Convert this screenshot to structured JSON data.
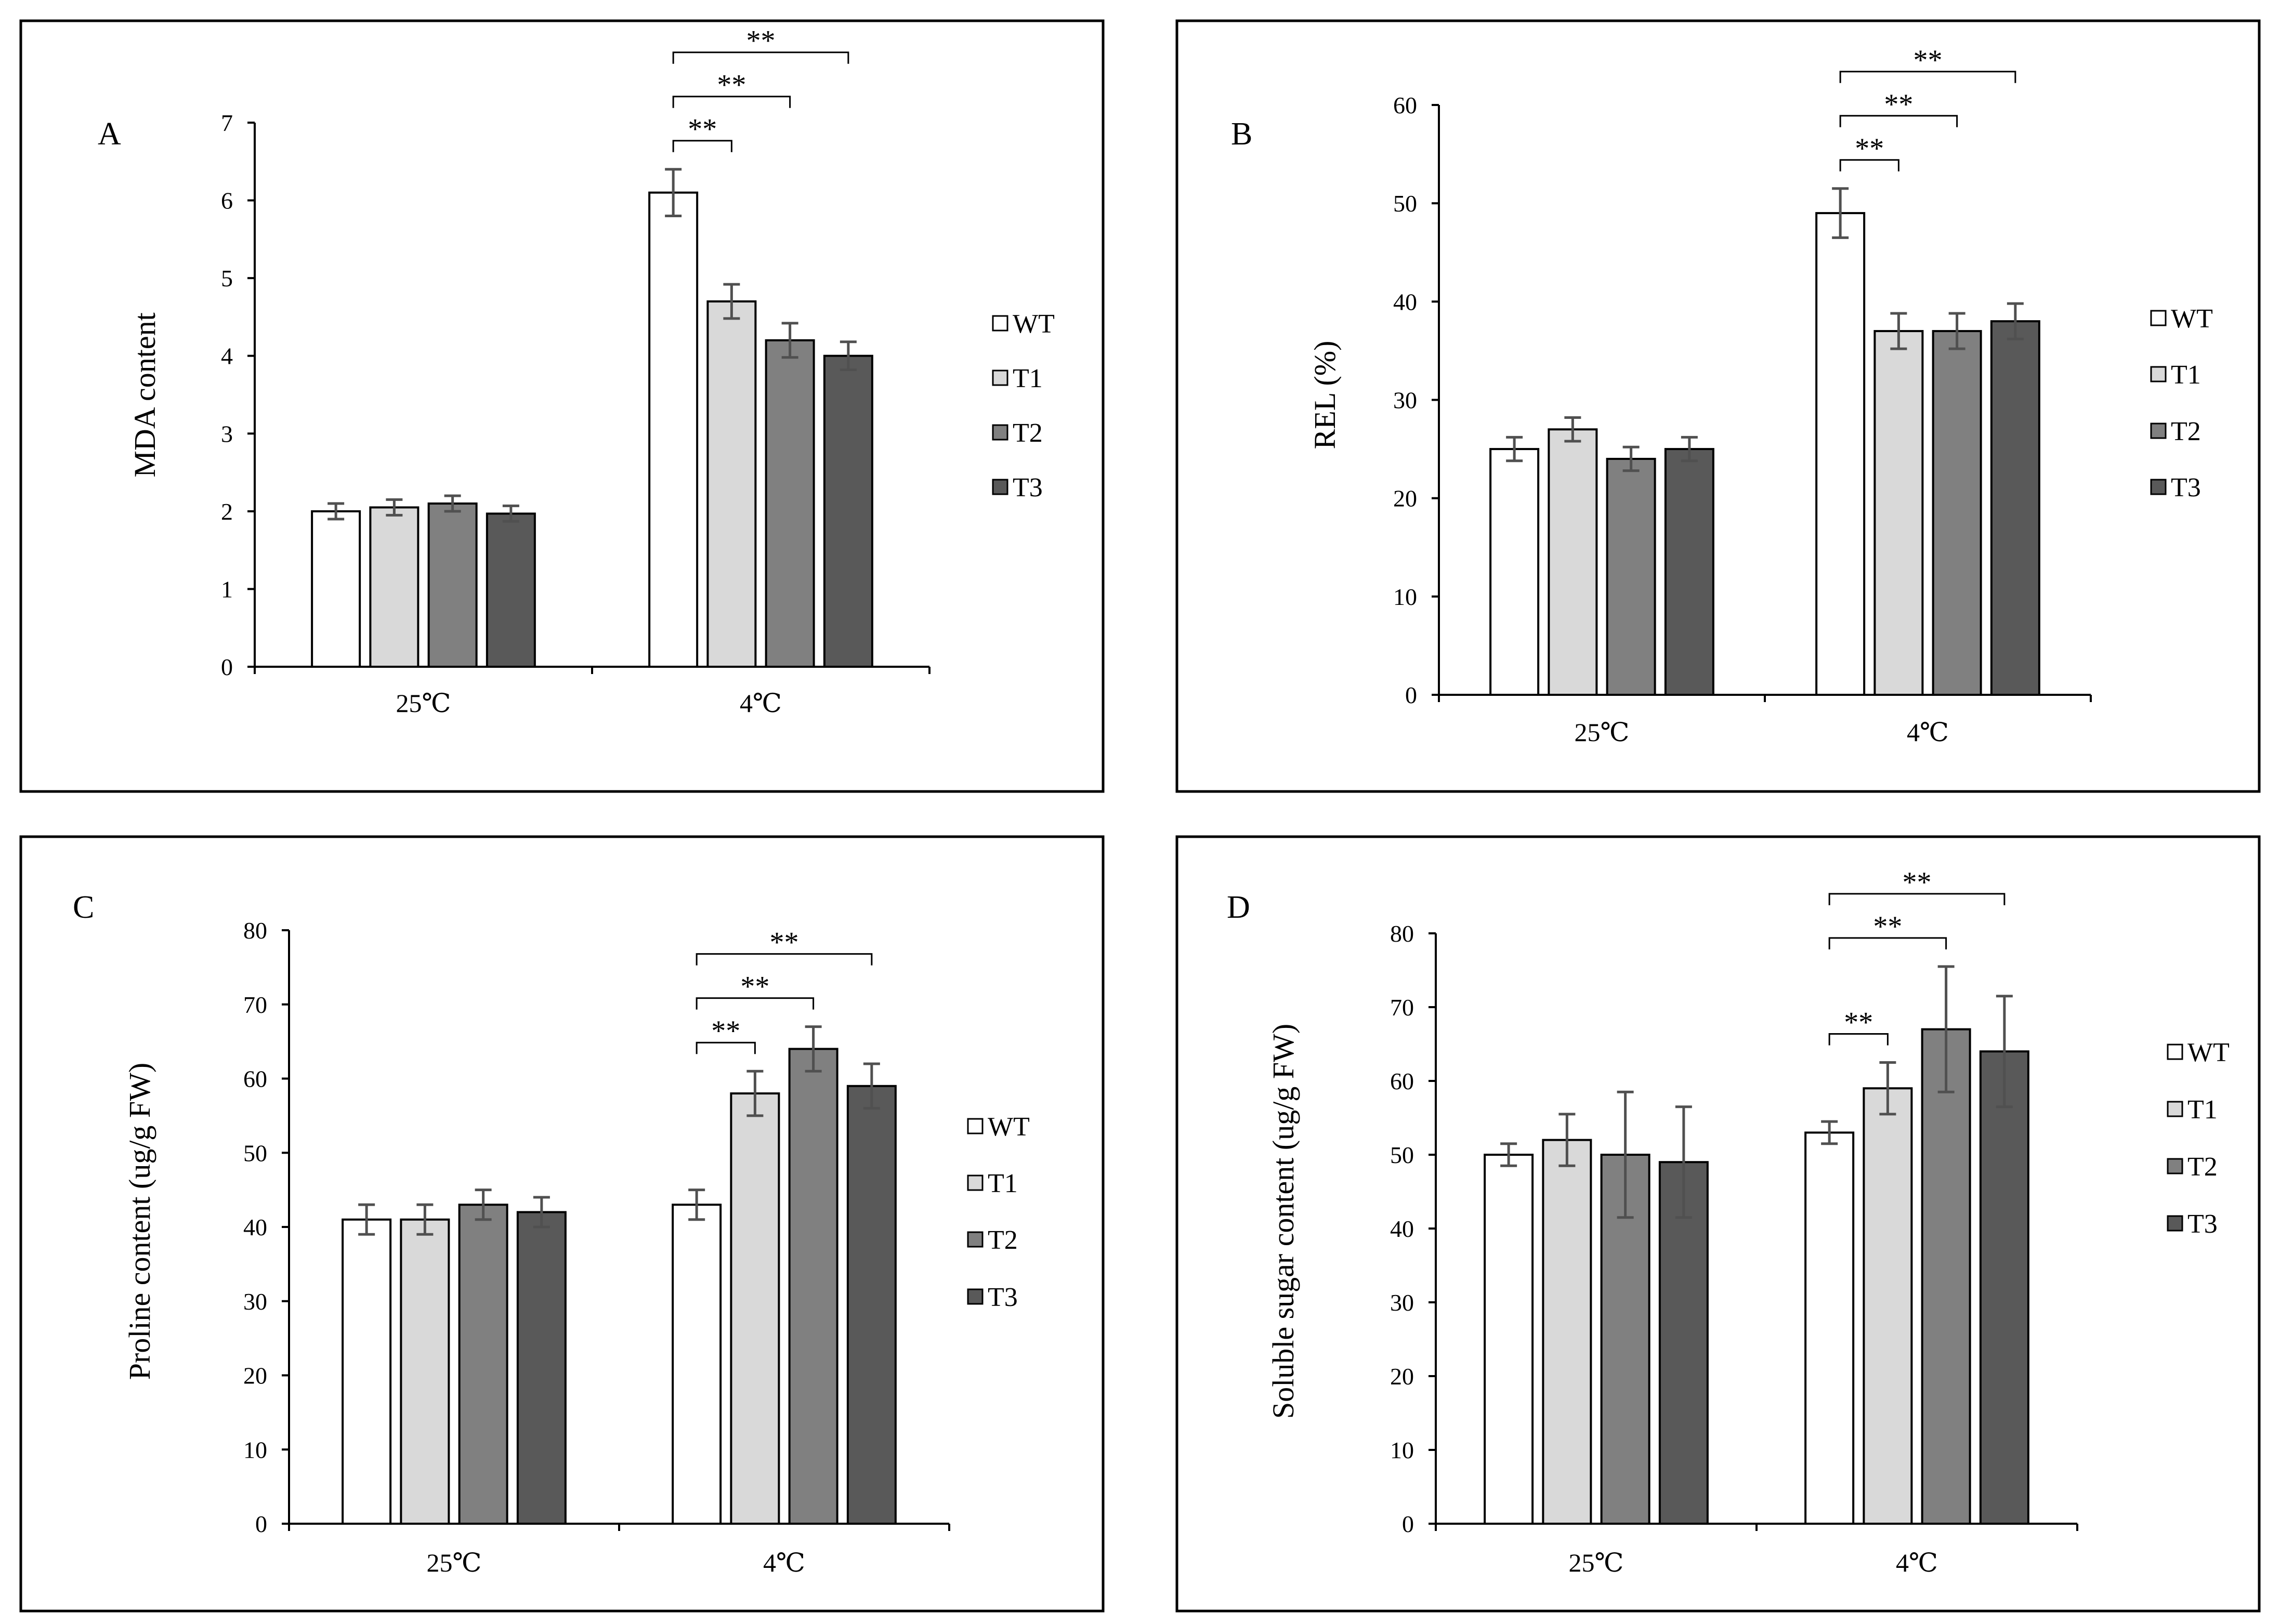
{
  "colors": {
    "WT": "#ffffff",
    "T1": "#d9d9d9",
    "T2": "#808080",
    "T3": "#595959",
    "error_bar": "#505050"
  },
  "chart_data": [
    {
      "type": "bar",
      "panel": "A",
      "title": "",
      "xlabel": "",
      "ylabel": "MDA content",
      "ylim": [
        0,
        7
      ],
      "yticks": [
        "0",
        "1",
        "2",
        "3",
        "4",
        "5",
        "6",
        "7"
      ],
      "categories": [
        "25℃",
        "4℃"
      ],
      "series": [
        {
          "name": "WT",
          "values": [
            2.0,
            6.1
          ],
          "errors": [
            0.1,
            0.3
          ]
        },
        {
          "name": "T1",
          "values": [
            2.05,
            4.7
          ],
          "errors": [
            0.1,
            0.22
          ]
        },
        {
          "name": "T2",
          "values": [
            2.1,
            4.2
          ],
          "errors": [
            0.1,
            0.22
          ]
        },
        {
          "name": "T3",
          "values": [
            1.97,
            4.0
          ],
          "errors": [
            0.1,
            0.18
          ]
        }
      ],
      "significance": [
        {
          "category": "4℃",
          "from": "WT",
          "to": "T1",
          "label": "**"
        },
        {
          "category": "4℃",
          "from": "WT",
          "to": "T2",
          "label": "**"
        },
        {
          "category": "4℃",
          "from": "WT",
          "to": "T3",
          "label": "**"
        }
      ],
      "legend": [
        "WT",
        "T1",
        "T2",
        "T3"
      ]
    },
    {
      "type": "bar",
      "panel": "B",
      "title": "",
      "xlabel": "",
      "ylabel": "REL (%)",
      "ylim": [
        0,
        60
      ],
      "yticks": [
        "0",
        "10",
        "20",
        "30",
        "40",
        "50",
        "60"
      ],
      "categories": [
        "25℃",
        "4℃"
      ],
      "series": [
        {
          "name": "WT",
          "values": [
            25,
            49
          ],
          "errors": [
            1.2,
            2.5
          ]
        },
        {
          "name": "T1",
          "values": [
            27,
            37
          ],
          "errors": [
            1.2,
            1.8
          ]
        },
        {
          "name": "T2",
          "values": [
            24,
            37
          ],
          "errors": [
            1.2,
            1.8
          ]
        },
        {
          "name": "T3",
          "values": [
            25,
            38
          ],
          "errors": [
            1.2,
            1.8
          ]
        }
      ],
      "significance": [
        {
          "category": "4℃",
          "from": "WT",
          "to": "T1",
          "label": "**"
        },
        {
          "category": "4℃",
          "from": "WT",
          "to": "T2",
          "label": "**"
        },
        {
          "category": "4℃",
          "from": "WT",
          "to": "T3",
          "label": "**"
        }
      ],
      "legend": [
        "WT",
        "T1",
        "T2",
        "T3"
      ]
    },
    {
      "type": "bar",
      "panel": "C",
      "title": "",
      "xlabel": "",
      "ylabel": "Proline content (ug/g FW)",
      "ylim": [
        0,
        80
      ],
      "yticks": [
        "0",
        "10",
        "20",
        "30",
        "40",
        "50",
        "60",
        "70",
        "80"
      ],
      "categories": [
        "25℃",
        "4℃"
      ],
      "series": [
        {
          "name": "WT",
          "values": [
            41,
            43
          ],
          "errors": [
            2,
            2
          ]
        },
        {
          "name": "T1",
          "values": [
            41,
            58
          ],
          "errors": [
            2,
            3
          ]
        },
        {
          "name": "T2",
          "values": [
            43,
            64
          ],
          "errors": [
            2,
            3
          ]
        },
        {
          "name": "T3",
          "values": [
            42,
            59
          ],
          "errors": [
            2,
            3
          ]
        }
      ],
      "significance": [
        {
          "category": "4℃",
          "from": "WT",
          "to": "T1",
          "label": "**"
        },
        {
          "category": "4℃",
          "from": "WT",
          "to": "T2",
          "label": "**"
        },
        {
          "category": "4℃",
          "from": "WT",
          "to": "T3",
          "label": "**"
        }
      ],
      "legend": [
        "WT",
        "T1",
        "T2",
        "T3"
      ]
    },
    {
      "type": "bar",
      "panel": "D",
      "title": "",
      "xlabel": "",
      "ylabel": "Soluble sugar content (ug/g FW)",
      "ylim": [
        0,
        80
      ],
      "yticks": [
        "0",
        "10",
        "20",
        "30",
        "40",
        "50",
        "60",
        "70",
        "80"
      ],
      "categories": [
        "25℃",
        "4℃"
      ],
      "series": [
        {
          "name": "WT",
          "values": [
            50,
            53
          ],
          "errors": [
            1.5,
            1.5
          ]
        },
        {
          "name": "T1",
          "values": [
            52,
            59
          ],
          "errors": [
            3.5,
            3.5
          ]
        },
        {
          "name": "T2",
          "values": [
            50,
            67
          ],
          "errors": [
            8.5,
            8.5
          ]
        },
        {
          "name": "T3",
          "values": [
            49,
            64
          ],
          "errors": [
            7.5,
            7.5
          ]
        }
      ],
      "significance": [
        {
          "category": "4℃",
          "from": "WT",
          "to": "T1",
          "label": "**"
        },
        {
          "category": "4℃",
          "from": "WT",
          "to": "T2",
          "label": "**"
        },
        {
          "category": "4℃",
          "from": "WT",
          "to": "T3",
          "label": "**"
        }
      ],
      "legend": [
        "WT",
        "T1",
        "T2",
        "T3"
      ]
    }
  ]
}
